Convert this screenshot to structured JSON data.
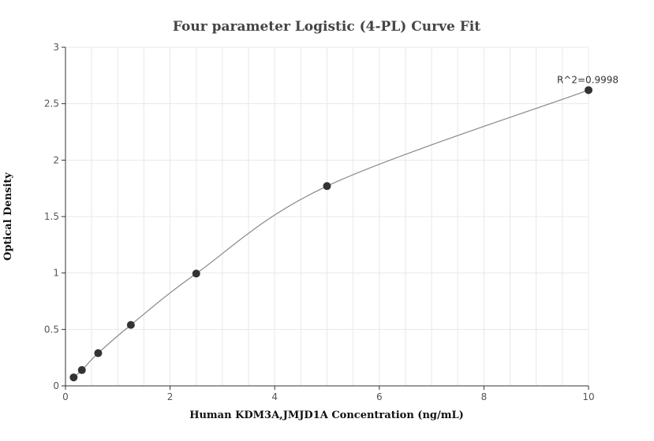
{
  "chart_data": {
    "type": "scatter",
    "title": "Four parameter Logistic (4-PL) Curve Fit",
    "xlabel": "Human KDM3A,JMJD1A Concentration (ng/mL)",
    "ylabel": "Optical Density",
    "xlim": [
      0,
      10
    ],
    "ylim": [
      0,
      3
    ],
    "xticks": [
      0,
      2,
      4,
      6,
      8,
      10
    ],
    "yticks": [
      0,
      0.5,
      1,
      1.5,
      2,
      2.5,
      3
    ],
    "xtick_labels": [
      "0",
      "2",
      "4",
      "6",
      "8",
      "10"
    ],
    "ytick_labels": [
      "0",
      "0.5",
      "1",
      "1.5",
      "2",
      "2.5",
      "3"
    ],
    "grid": true,
    "points": {
      "x": [
        0.156,
        0.313,
        0.625,
        1.25,
        2.5,
        5,
        10
      ],
      "y": [
        0.075,
        0.14,
        0.29,
        0.54,
        0.995,
        1.77,
        2.62
      ]
    },
    "annotation": "R^2=0.9998",
    "colors": {
      "point": "#333333",
      "curve": "#888888",
      "grid": "#e8e8e8"
    }
  }
}
